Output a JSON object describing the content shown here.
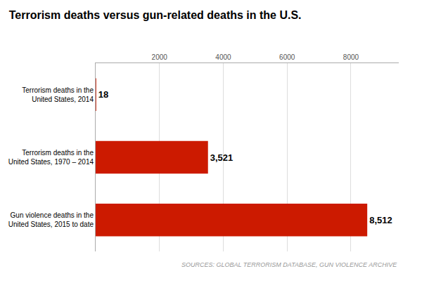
{
  "chart_data": {
    "type": "bar",
    "orientation": "horizontal",
    "title": "Terrorism deaths versus gun-related deaths in the U.S.",
    "categories": [
      "Gun violence deaths in the\nUnited States, 2015 to date",
      "Terrorism deaths in the\nUnited States, 1970 – 2014",
      "Terrorism deaths in the\nUnited States, 2014"
    ],
    "values": [
      8512,
      3521,
      18
    ],
    "value_labels": [
      "8,512",
      "3,521",
      "18"
    ],
    "data_labels": true,
    "color": "#cc1a00",
    "xlim": [
      0,
      9500
    ],
    "xticks": [
      2000,
      4000,
      6000,
      8000
    ],
    "grid": true,
    "annotations": [
      "SOURCES: GLOBAL TERRORISM DATABASE, GUN VIOLENCE ARCHIVE"
    ]
  }
}
